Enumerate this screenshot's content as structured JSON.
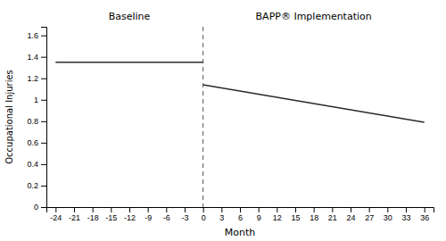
{
  "chart_data": {
    "type": "line",
    "xlabel": "Month",
    "ylabel": "Occupational Injuries",
    "series": [
      {
        "x": [
          -24,
          0
        ],
        "values": [
          1.35,
          1.35
        ],
        "color": "#2b2b2b"
      },
      {
        "x": [
          0,
          36
        ],
        "values": [
          1.14,
          0.79
        ],
        "color": "#2b2b2b"
      }
    ],
    "vlines": [
      {
        "x": 0,
        "color": "#555555",
        "line_style": "dashed"
      }
    ],
    "annotations": [
      {
        "text": "Baseline",
        "x": -12
      },
      {
        "text": "BAPP® Implementation",
        "x": 18
      }
    ],
    "xlim": [
      -25.5,
      37.5
    ],
    "xticks": [
      -24,
      -21,
      -18,
      -15,
      -12,
      -9,
      -6,
      -3,
      0,
      3,
      6,
      9,
      12,
      15,
      18,
      21,
      24,
      27,
      30,
      33,
      36
    ],
    "ylim": [
      0,
      1.68
    ],
    "yticks": [
      0,
      0.2,
      0.4,
      0.6,
      0.8,
      1,
      1.2,
      1.4,
      1.6
    ],
    "grid": false
  }
}
